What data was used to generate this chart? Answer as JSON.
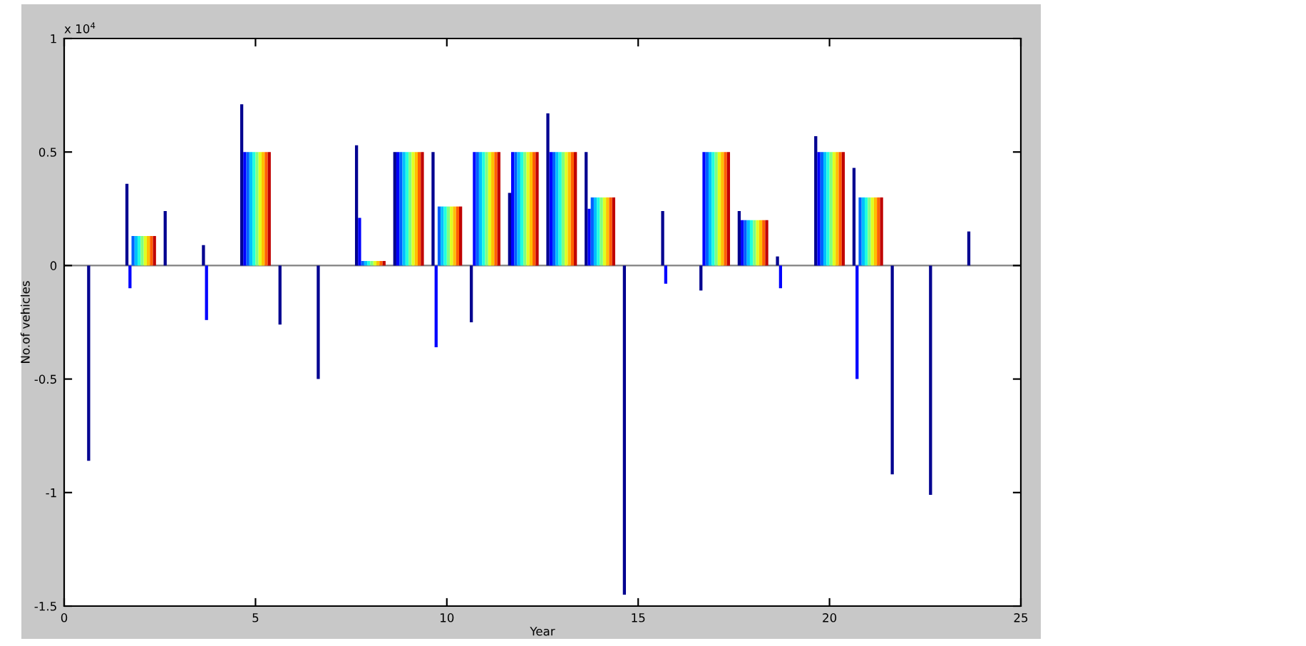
{
  "chart_data": {
    "type": "bar",
    "xlabel": "Year",
    "ylabel": "No.of vehicles",
    "annotations": [
      "x 10$^{4}$"
    ],
    "x": [
      1,
      2,
      3,
      4,
      5,
      6,
      7,
      8,
      9,
      10,
      11,
      12,
      13,
      14,
      15,
      16,
      17,
      18,
      19,
      20,
      21,
      22,
      23,
      24
    ],
    "series": [
      {
        "color": "#000090",
        "values": [
          -0.86,
          0.36,
          0.24,
          0.09,
          0.71,
          -0.26,
          -0.5,
          0.53,
          0.5,
          0.5,
          -0.25,
          0.32,
          0.67,
          0.5,
          -1.45,
          0.24,
          -0.11,
          0.24,
          0.04,
          0.57,
          0.43,
          -0.92,
          -1.01,
          0.15
        ]
      },
      {
        "color": "#0000ff",
        "values": [
          0,
          -0.1,
          0,
          -0.24,
          0.5,
          0,
          0,
          0.21,
          0.5,
          -0.36,
          0.5,
          0.5,
          0.5,
          0.25,
          0,
          -0.08,
          0.5,
          0.2,
          -0.1,
          0.5,
          -0.5,
          0,
          0,
          0
        ]
      },
      {
        "color": "#0060ff",
        "values": [
          0,
          0.13,
          0,
          0,
          0.5,
          0,
          0,
          0.02,
          0.5,
          0.26,
          0.5,
          0.5,
          0.5,
          0.3,
          0,
          0,
          0.5,
          0.2,
          0,
          0.5,
          0.3,
          0,
          0,
          0
        ]
      },
      {
        "color": "#00c0ff",
        "values": [
          0,
          0.13,
          0,
          0,
          0.5,
          0,
          0,
          0.02,
          0.5,
          0.26,
          0.5,
          0.5,
          0.5,
          0.3,
          0,
          0,
          0.5,
          0.2,
          0,
          0.5,
          0.3,
          0,
          0,
          0
        ]
      },
      {
        "color": "#20ffdf",
        "values": [
          0,
          0.13,
          0,
          0,
          0.5,
          0,
          0,
          0.02,
          0.5,
          0.26,
          0.5,
          0.5,
          0.5,
          0.3,
          0,
          0,
          0.5,
          0.2,
          0,
          0.5,
          0.3,
          0,
          0,
          0
        ]
      },
      {
        "color": "#80ff80",
        "values": [
          0,
          0.13,
          0,
          0,
          0.5,
          0,
          0,
          0.02,
          0.5,
          0.26,
          0.5,
          0.5,
          0.5,
          0.3,
          0,
          0,
          0.5,
          0.2,
          0,
          0.5,
          0.3,
          0,
          0,
          0
        ]
      },
      {
        "color": "#dfff20",
        "values": [
          0,
          0.13,
          0,
          0,
          0.5,
          0,
          0,
          0.02,
          0.5,
          0.26,
          0.5,
          0.5,
          0.5,
          0.3,
          0,
          0,
          0.5,
          0.2,
          0,
          0.5,
          0.3,
          0,
          0,
          0
        ]
      },
      {
        "color": "#ffc000",
        "values": [
          0,
          0.13,
          0,
          0,
          0.5,
          0,
          0,
          0.02,
          0.5,
          0.26,
          0.5,
          0.5,
          0.5,
          0.3,
          0,
          0,
          0.5,
          0.2,
          0,
          0.5,
          0.3,
          0,
          0,
          0
        ]
      },
      {
        "color": "#ff6000",
        "values": [
          0,
          0.13,
          0,
          0,
          0.5,
          0,
          0,
          0.02,
          0.5,
          0.26,
          0.5,
          0.5,
          0.5,
          0.3,
          0,
          0,
          0.5,
          0.2,
          0,
          0.5,
          0.3,
          0,
          0,
          0
        ]
      },
      {
        "color": "#c00000",
        "values": [
          0,
          0.13,
          0,
          0,
          0.5,
          0,
          0,
          0.02,
          0.5,
          0.26,
          0.5,
          0.5,
          0.5,
          0.3,
          0,
          0,
          0.5,
          0.2,
          0,
          0.5,
          0.3,
          0,
          0,
          0
        ]
      }
    ],
    "xlim": [
      0,
      25
    ],
    "xticks": [
      0,
      5,
      10,
      15,
      20,
      25
    ],
    "ylim": [
      -1.5,
      1
    ],
    "yticks": [
      -1.5,
      -1,
      -0.5,
      0,
      0.5,
      1
    ],
    "ref_lines": [
      {
        "axis": "y",
        "value": 0,
        "color": "#808080"
      }
    ]
  }
}
